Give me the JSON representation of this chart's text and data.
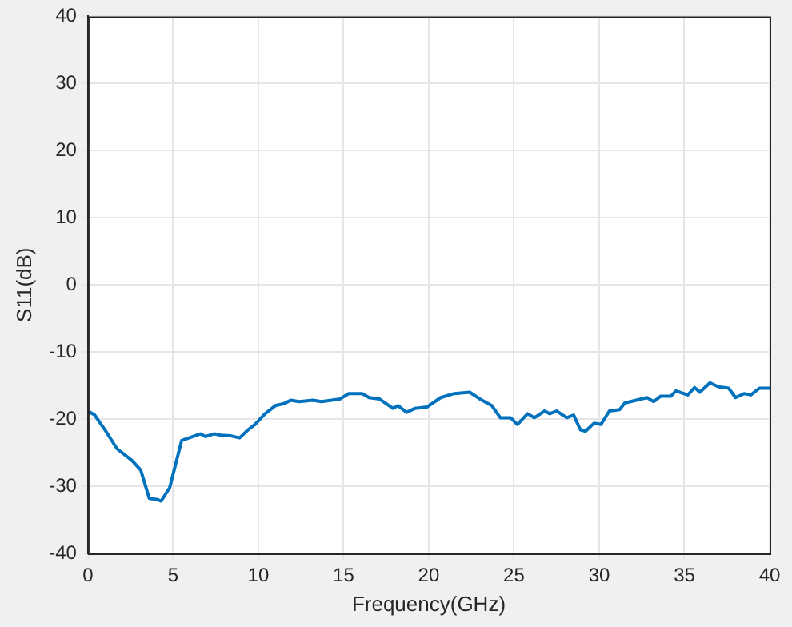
{
  "chart_data": {
    "type": "line",
    "xlabel": "Frequency(GHz)",
    "ylabel": "S11(dB)",
    "xlim": [
      0,
      40
    ],
    "xticks": [
      0,
      5,
      10,
      15,
      20,
      25,
      30,
      35,
      40
    ],
    "ylim": [
      -40,
      40
    ],
    "yticks": [
      -40,
      -30,
      -20,
      -10,
      0,
      10,
      20,
      30,
      40
    ],
    "grid": true,
    "legend": false,
    "marker": "none",
    "line_style": "solid",
    "series": [
      {
        "color": "#0072bd",
        "x": [
          0,
          0.4,
          1.0,
          1.7,
          2.6,
          3.1,
          3.6,
          4.1,
          4.3,
          4.8,
          5.5,
          6.6,
          6.9,
          7.4,
          7.8,
          8.4,
          8.9,
          9.4,
          9.8,
          10.4,
          11.0,
          11.5,
          11.9,
          12.4,
          13.2,
          13.7,
          14.3,
          14.8,
          15.3,
          16.1,
          16.5,
          17.1,
          17.9,
          18.2,
          18.7,
          19.2,
          19.9,
          20.7,
          21.5,
          22.4,
          23.0,
          23.7,
          24.2,
          24.8,
          25.2,
          25.8,
          26.2,
          26.8,
          27.1,
          27.5,
          28.1,
          28.5,
          28.9,
          29.2,
          29.7,
          30.1,
          30.6,
          31.2,
          31.5,
          32.8,
          33.2,
          33.6,
          34.2,
          34.5,
          35.2,
          35.6,
          35.9,
          36.5,
          37.0,
          37.6,
          38.0,
          38.5,
          38.9,
          39.4,
          40.0
        ],
        "values": [
          -18.8,
          -19.4,
          -21.6,
          -24.4,
          -26.2,
          -27.6,
          -31.8,
          -32.0,
          -32.2,
          -30.2,
          -23.2,
          -22.2,
          -22.6,
          -22.2,
          -22.4,
          -22.5,
          -22.8,
          -21.6,
          -20.8,
          -19.2,
          -18.0,
          -17.7,
          -17.2,
          -17.4,
          -17.2,
          -17.4,
          -17.2,
          -17.0,
          -16.2,
          -16.2,
          -16.8,
          -17.0,
          -18.4,
          -18.0,
          -19.0,
          -18.4,
          -18.2,
          -16.8,
          -16.2,
          -16.0,
          -17.0,
          -18.0,
          -19.8,
          -19.8,
          -20.8,
          -19.2,
          -19.8,
          -18.8,
          -19.2,
          -18.8,
          -19.8,
          -19.4,
          -21.6,
          -21.8,
          -20.6,
          -20.8,
          -18.8,
          -18.6,
          -17.6,
          -16.8,
          -17.4,
          -16.6,
          -16.6,
          -15.8,
          -16.4,
          -15.3,
          -16.0,
          -14.6,
          -15.2,
          -15.4,
          -16.8,
          -16.2,
          -16.4,
          -15.4,
          -15.4
        ]
      }
    ]
  }
}
